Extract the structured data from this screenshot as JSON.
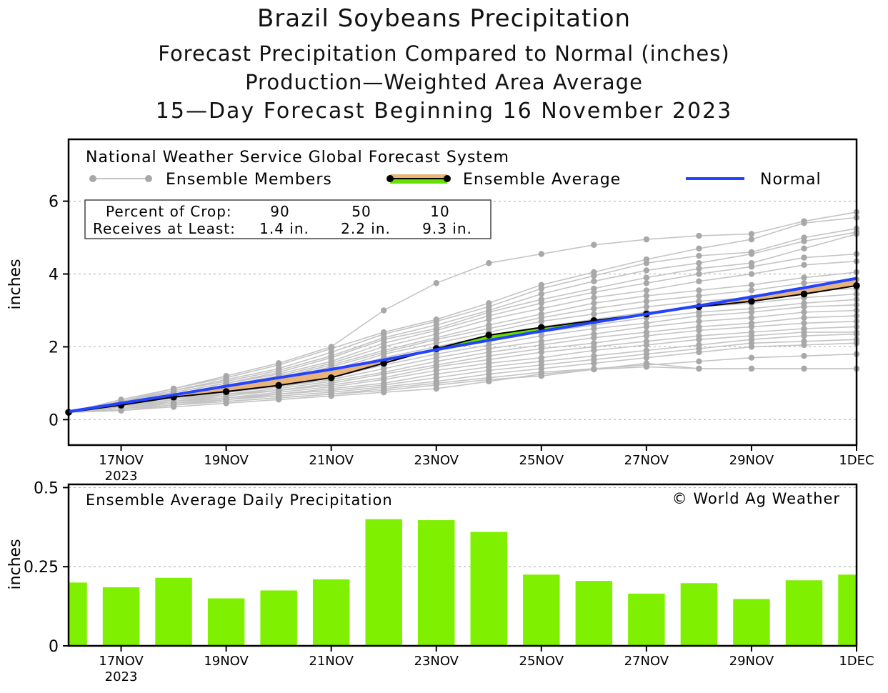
{
  "titles": {
    "title": "Brazil Soybeans Precipitation",
    "subtitle1": "Forecast Precipitation Compared to Normal (inches)",
    "subtitle2": "Production—Weighted Area Average",
    "subtitle3": "15—Day Forecast Beginning 16 November 2023"
  },
  "legend": {
    "model": "National Weather Service Global Forecast System",
    "members_label": "Ensemble Members",
    "average_label": "Ensemble Average",
    "normal_label": "Normal"
  },
  "crop_box": {
    "row1_label": "Percent of Crop:",
    "row2_label": "Receives at Least:",
    "percents": [
      "90",
      "50",
      "10"
    ],
    "amounts": [
      "1.4 in.",
      "2.2 in.",
      "9.3 in."
    ]
  },
  "copyright": "© World Ag Weather",
  "colors": {
    "member": "#c4c4c4",
    "member_dot": "#a8a8a8",
    "average": "#000000",
    "normal": "#2343ff",
    "above_fill": "#66e000",
    "below_fill": "#e8b47a",
    "bar": "#7ff000"
  },
  "chart_data": [
    {
      "type": "line",
      "title": "Forecast Precipitation Compared to Normal (inches)",
      "ylabel": "inches",
      "xlabel": "",
      "ylim": [
        -0.7,
        7.7
      ],
      "yticks": [
        0,
        2,
        4,
        6
      ],
      "x": [
        16,
        17,
        18,
        19,
        20,
        21,
        22,
        23,
        24,
        25,
        26,
        27,
        28,
        29,
        30,
        31
      ],
      "xlim": [
        16,
        31
      ],
      "xtick_days": [
        17,
        19,
        21,
        23,
        25,
        27,
        29,
        31
      ],
      "xtick_labels": [
        "17NOV",
        "19NOV",
        "21NOV",
        "23NOV",
        "25NOV",
        "27NOV",
        "29NOV",
        "1DEC"
      ],
      "xtick_year": "2023",
      "grid": true,
      "normal": [
        0.22,
        0.45,
        0.68,
        0.92,
        1.15,
        1.38,
        1.64,
        1.92,
        2.18,
        2.43,
        2.67,
        2.9,
        3.13,
        3.37,
        3.62,
        3.88
      ],
      "ensemble_average": [
        0.2,
        0.4,
        0.62,
        0.77,
        0.94,
        1.15,
        1.55,
        1.95,
        2.32,
        2.53,
        2.72,
        2.9,
        3.1,
        3.25,
        3.45,
        3.68
      ],
      "ensemble_members": [
        [
          0.2,
          0.55,
          0.85,
          1.2,
          1.55,
          2.0,
          3.0,
          3.75,
          4.3,
          4.55,
          4.8,
          4.95,
          5.05,
          5.1,
          5.45,
          5.7
        ],
        [
          0.2,
          0.5,
          0.85,
          1.15,
          1.5,
          1.95,
          2.4,
          2.75,
          3.2,
          3.7,
          4.05,
          4.4,
          4.7,
          4.95,
          5.4,
          5.55
        ],
        [
          0.2,
          0.5,
          0.8,
          1.1,
          1.4,
          1.85,
          2.35,
          2.7,
          3.1,
          3.6,
          3.95,
          4.3,
          4.5,
          4.6,
          5.0,
          5.25
        ],
        [
          0.2,
          0.5,
          0.8,
          1.05,
          1.35,
          1.75,
          2.25,
          2.6,
          3.0,
          3.45,
          3.8,
          4.1,
          4.3,
          4.55,
          4.9,
          5.15
        ],
        [
          0.2,
          0.5,
          0.75,
          1.0,
          1.3,
          1.7,
          2.2,
          2.5,
          2.95,
          3.3,
          3.6,
          3.9,
          4.15,
          4.3,
          4.7,
          5.1
        ],
        [
          0.2,
          0.45,
          0.75,
          1.0,
          1.25,
          1.6,
          2.1,
          2.45,
          2.85,
          3.2,
          3.5,
          3.75,
          4.0,
          4.2,
          4.45,
          4.55
        ],
        [
          0.2,
          0.45,
          0.7,
          0.95,
          1.2,
          1.55,
          2.0,
          2.35,
          2.75,
          3.05,
          3.35,
          3.55,
          3.8,
          4.0,
          4.25,
          4.35
        ],
        [
          0.2,
          0.45,
          0.7,
          0.95,
          1.15,
          1.5,
          1.9,
          2.25,
          2.6,
          2.9,
          3.2,
          3.4,
          3.55,
          3.7,
          3.9,
          4.05
        ],
        [
          0.2,
          0.45,
          0.7,
          0.9,
          1.1,
          1.45,
          1.85,
          2.2,
          2.5,
          2.8,
          3.05,
          3.25,
          3.4,
          3.55,
          3.75,
          3.85
        ],
        [
          0.2,
          0.4,
          0.65,
          0.85,
          1.05,
          1.35,
          1.8,
          2.1,
          2.4,
          2.7,
          2.9,
          3.1,
          3.25,
          3.35,
          3.55,
          3.6
        ],
        [
          0.2,
          0.4,
          0.65,
          0.85,
          1.0,
          1.3,
          1.7,
          2.0,
          2.3,
          2.55,
          2.75,
          2.95,
          3.1,
          3.2,
          3.35,
          3.45
        ],
        [
          0.2,
          0.4,
          0.6,
          0.8,
          0.95,
          1.25,
          1.6,
          1.9,
          2.15,
          2.4,
          2.6,
          2.8,
          2.95,
          3.05,
          3.2,
          3.3
        ],
        [
          0.2,
          0.38,
          0.6,
          0.75,
          0.9,
          1.15,
          1.5,
          1.8,
          2.05,
          2.3,
          2.5,
          2.65,
          2.85,
          2.95,
          3.1,
          3.15
        ],
        [
          0.2,
          0.38,
          0.55,
          0.75,
          0.9,
          1.1,
          1.4,
          1.7,
          1.95,
          2.15,
          2.35,
          2.55,
          2.7,
          2.8,
          2.95,
          3.0
        ],
        [
          0.2,
          0.35,
          0.55,
          0.7,
          0.85,
          1.05,
          1.3,
          1.6,
          1.85,
          2.05,
          2.25,
          2.4,
          2.55,
          2.65,
          2.8,
          2.85
        ],
        [
          0.2,
          0.35,
          0.5,
          0.7,
          0.8,
          1.0,
          1.25,
          1.5,
          1.75,
          1.95,
          2.1,
          2.3,
          2.45,
          2.55,
          2.65,
          2.7
        ],
        [
          0.2,
          0.35,
          0.5,
          0.65,
          0.8,
          0.95,
          1.15,
          1.45,
          1.65,
          1.85,
          2.0,
          2.15,
          2.3,
          2.4,
          2.5,
          2.55
        ],
        [
          0.2,
          0.3,
          0.5,
          0.6,
          0.75,
          0.9,
          1.1,
          1.35,
          1.55,
          1.7,
          1.9,
          2.05,
          2.2,
          2.3,
          2.4,
          2.4
        ],
        [
          0.2,
          0.3,
          0.45,
          0.6,
          0.7,
          0.85,
          1.0,
          1.25,
          1.45,
          1.6,
          1.75,
          1.9,
          2.05,
          2.2,
          2.3,
          2.35
        ],
        [
          0.2,
          0.3,
          0.45,
          0.55,
          0.7,
          0.8,
          0.95,
          1.15,
          1.35,
          1.5,
          1.65,
          1.8,
          1.95,
          2.1,
          2.15,
          2.2
        ],
        [
          0.2,
          0.3,
          0.4,
          0.55,
          0.65,
          0.75,
          0.9,
          1.05,
          1.25,
          1.4,
          1.55,
          1.7,
          1.85,
          2.0,
          2.05,
          2.1
        ],
        [
          0.2,
          0.25,
          0.4,
          0.5,
          0.6,
          0.7,
          0.85,
          1.0,
          1.15,
          1.3,
          1.4,
          1.5,
          1.6,
          1.7,
          1.75,
          1.8
        ],
        [
          0.2,
          0.25,
          0.4,
          0.5,
          0.6,
          0.7,
          0.8,
          0.95,
          1.1,
          1.2,
          1.38,
          1.55,
          1.4,
          1.4,
          1.4,
          1.4
        ],
        [
          0.2,
          0.25,
          0.35,
          0.45,
          0.55,
          0.65,
          0.75,
          0.85,
          1.05,
          1.25,
          1.38,
          1.45,
          1.4,
          1.4,
          1.4,
          1.4
        ]
      ]
    },
    {
      "type": "bar",
      "title": "Ensemble Average Daily Precipitation",
      "ylabel": "inches",
      "ylim": [
        0,
        0.51
      ],
      "yticks": [
        0,
        0.25,
        0.5
      ],
      "ytick_labels": [
        "0",
        "0.25",
        "0.5"
      ],
      "x": [
        16,
        17,
        18,
        19,
        20,
        21,
        22,
        23,
        24,
        25,
        26,
        27,
        28,
        29,
        30,
        31
      ],
      "values": [
        0.2,
        0.185,
        0.215,
        0.15,
        0.175,
        0.21,
        0.4,
        0.397,
        0.36,
        0.225,
        0.205,
        0.165,
        0.198,
        0.148,
        0.207,
        0.225
      ],
      "xtick_days": [
        17,
        19,
        21,
        23,
        25,
        27,
        29,
        31
      ],
      "xtick_labels": [
        "17NOV",
        "19NOV",
        "21NOV",
        "23NOV",
        "25NOV",
        "27NOV",
        "29NOV",
        "1DEC"
      ],
      "xtick_year": "2023",
      "grid": true
    }
  ]
}
